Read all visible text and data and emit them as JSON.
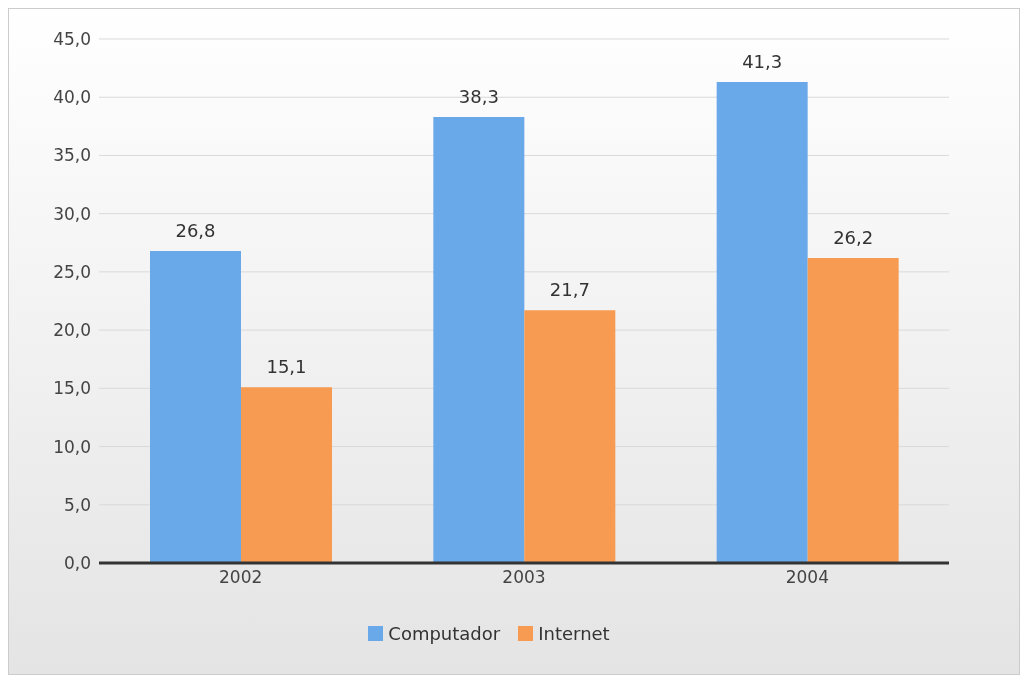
{
  "chart_data": {
    "type": "bar",
    "categories": [
      "2002",
      "2003",
      "2004"
    ],
    "series": [
      {
        "name": "Computador",
        "color": "#6aa9e9",
        "values": [
          26.8,
          38.3,
          41.3
        ],
        "value_labels": [
          "26,8",
          "38,3",
          "41,3"
        ]
      },
      {
        "name": "Internet",
        "color": "#f79a52",
        "values": [
          15.1,
          21.7,
          26.2
        ],
        "value_labels": [
          "15,1",
          "21,7",
          "26,2"
        ]
      }
    ],
    "ylim": [
      0,
      45
    ],
    "yticks": [
      {
        "value": 0,
        "label": "0,0"
      },
      {
        "value": 5,
        "label": "5,0"
      },
      {
        "value": 10,
        "label": "10,0"
      },
      {
        "value": 15,
        "label": "15,0"
      },
      {
        "value": 20,
        "label": "20,0"
      },
      {
        "value": 25,
        "label": "25,0"
      },
      {
        "value": 30,
        "label": "30,0"
      },
      {
        "value": 35,
        "label": "35,0"
      },
      {
        "value": 40,
        "label": "40,0"
      },
      {
        "value": 45,
        "label": "45,0"
      }
    ],
    "grid": "y",
    "legend": "bottom"
  }
}
